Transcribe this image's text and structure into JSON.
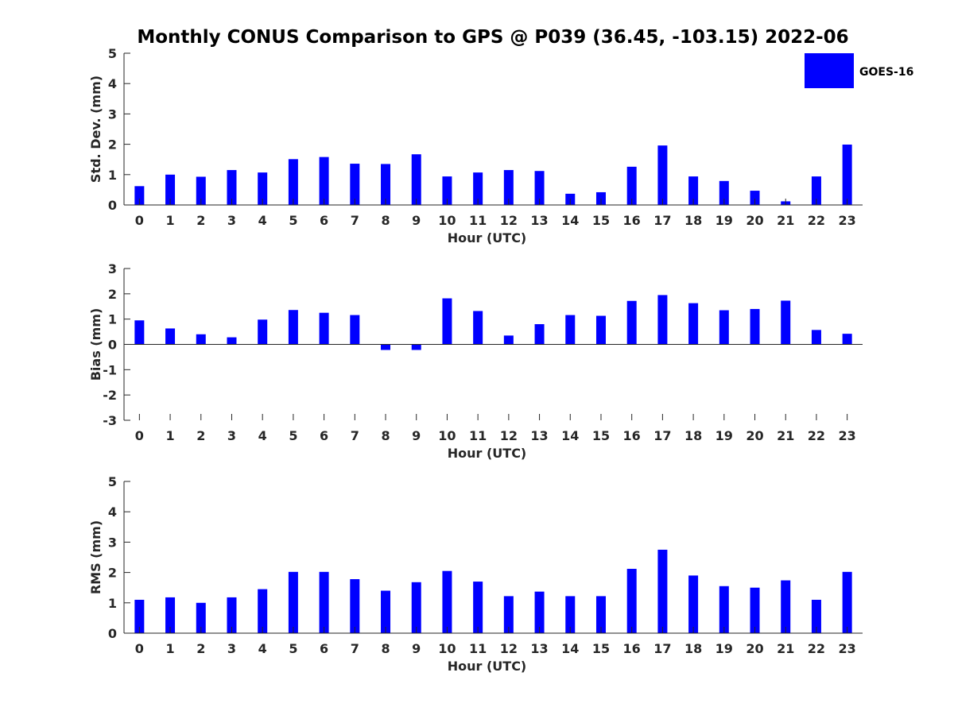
{
  "title": "Monthly CONUS Comparison to GPS @ P039 (36.45, -103.15) 2022-06",
  "legend": {
    "label": "GOES-16",
    "color": "#0000ff"
  },
  "chart_data": [
    {
      "type": "bar",
      "xlabel": "Hour (UTC)",
      "ylabel": "Std. Dev. (mm)",
      "ylim": [
        0,
        5
      ],
      "yticks": [
        0,
        1,
        2,
        3,
        4,
        5
      ],
      "categories": [
        "0",
        "1",
        "2",
        "3",
        "4",
        "5",
        "6",
        "7",
        "8",
        "9",
        "10",
        "11",
        "12",
        "13",
        "14",
        "15",
        "16",
        "17",
        "18",
        "19",
        "20",
        "21",
        "22",
        "23"
      ],
      "series": [
        {
          "name": "GOES-16",
          "values": [
            0.62,
            1.0,
            0.93,
            1.15,
            1.07,
            1.51,
            1.58,
            1.36,
            1.35,
            1.67,
            0.94,
            1.07,
            1.15,
            1.12,
            0.37,
            0.42,
            1.26,
            1.96,
            0.94,
            0.79,
            0.47,
            0.12,
            0.94,
            1.99
          ]
        }
      ]
    },
    {
      "type": "bar",
      "xlabel": "Hour (UTC)",
      "ylabel": "Bias (mm)",
      "ylim": [
        -3,
        3
      ],
      "yticks": [
        -3,
        -2,
        -1,
        0,
        1,
        2,
        3
      ],
      "categories": [
        "0",
        "1",
        "2",
        "3",
        "4",
        "5",
        "6",
        "7",
        "8",
        "9",
        "10",
        "11",
        "12",
        "13",
        "14",
        "15",
        "16",
        "17",
        "18",
        "19",
        "20",
        "21",
        "22",
        "23"
      ],
      "series": [
        {
          "name": "GOES-16",
          "values": [
            0.95,
            0.63,
            0.4,
            0.28,
            0.98,
            1.36,
            1.25,
            1.16,
            -0.22,
            -0.22,
            1.82,
            1.32,
            0.35,
            0.8,
            1.16,
            1.13,
            1.72,
            1.95,
            1.63,
            1.35,
            1.4,
            1.73,
            0.57,
            0.42
          ]
        }
      ]
    },
    {
      "type": "bar",
      "xlabel": "Hour (UTC)",
      "ylabel": "RMS (mm)",
      "ylim": [
        0,
        5
      ],
      "yticks": [
        0,
        1,
        2,
        3,
        4,
        5
      ],
      "categories": [
        "0",
        "1",
        "2",
        "3",
        "4",
        "5",
        "6",
        "7",
        "8",
        "9",
        "10",
        "11",
        "12",
        "13",
        "14",
        "15",
        "16",
        "17",
        "18",
        "19",
        "20",
        "21",
        "22",
        "23"
      ],
      "series": [
        {
          "name": "GOES-16",
          "values": [
            1.1,
            1.18,
            1.0,
            1.18,
            1.45,
            2.02,
            2.02,
            1.78,
            1.4,
            1.68,
            2.05,
            1.7,
            1.22,
            1.37,
            1.22,
            1.22,
            2.12,
            2.75,
            1.9,
            1.55,
            1.5,
            1.74,
            1.1,
            2.02
          ]
        }
      ]
    }
  ]
}
